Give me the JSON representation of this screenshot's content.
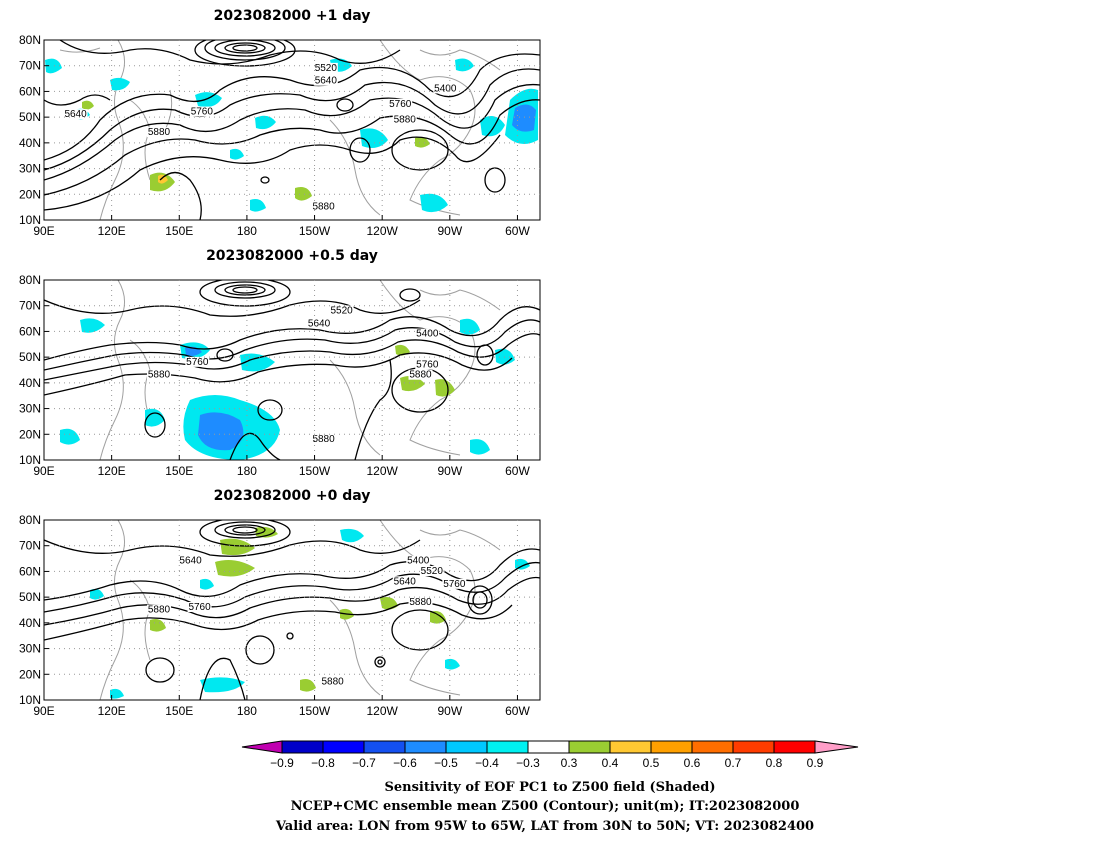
{
  "panels": [
    {
      "title": "2023082000  +1  day",
      "contour_labels": [
        {
          "text": "5520",
          "lon": 215,
          "lat": 68
        },
        {
          "text": "5640",
          "lon": 215,
          "lat": 63
        },
        {
          "text": "5400",
          "lon": 268,
          "lat": 60
        },
        {
          "text": "5760",
          "lon": 248,
          "lat": 54
        },
        {
          "text": "5880",
          "lon": 250,
          "lat": 48
        },
        {
          "text": "5640",
          "lon": 104,
          "lat": 50
        },
        {
          "text": "5760",
          "lon": 160,
          "lat": 51
        },
        {
          "text": "5880",
          "lon": 141,
          "lat": 43
        },
        {
          "text": "5880",
          "lon": 214,
          "lat": 14
        }
      ]
    },
    {
      "title": "2023082000  +0.5  day",
      "contour_labels": [
        {
          "text": "5520",
          "lon": 222,
          "lat": 67
        },
        {
          "text": "5640",
          "lon": 212,
          "lat": 62
        },
        {
          "text": "5400",
          "lon": 260,
          "lat": 58
        },
        {
          "text": "5760",
          "lon": 158,
          "lat": 47
        },
        {
          "text": "5760",
          "lon": 260,
          "lat": 46
        },
        {
          "text": "5880",
          "lon": 141,
          "lat": 42
        },
        {
          "text": "5880",
          "lon": 257,
          "lat": 42
        },
        {
          "text": "5880",
          "lon": 214,
          "lat": 17
        }
      ]
    },
    {
      "title": "2023082000  +0  day",
      "contour_labels": [
        {
          "text": "5640",
          "lon": 155,
          "lat": 63
        },
        {
          "text": "5400",
          "lon": 256,
          "lat": 63
        },
        {
          "text": "5520",
          "lon": 262,
          "lat": 59
        },
        {
          "text": "5640",
          "lon": 250,
          "lat": 55
        },
        {
          "text": "5760",
          "lon": 272,
          "lat": 54
        },
        {
          "text": "5760",
          "lon": 159,
          "lat": 45
        },
        {
          "text": "5880",
          "lon": 141,
          "lat": 44
        },
        {
          "text": "5880",
          "lon": 257,
          "lat": 47
        },
        {
          "text": "5880",
          "lon": 218,
          "lat": 16
        }
      ]
    }
  ],
  "map_extent": {
    "lon_min": 90,
    "lon_max": 310,
    "lat_min": 10,
    "lat_max": 80
  },
  "x_ticks": [
    "90E",
    "120E",
    "150E",
    "180",
    "150W",
    "120W",
    "90W",
    "60W"
  ],
  "y_ticks": [
    "80N",
    "70N",
    "60N",
    "50N",
    "40N",
    "30N",
    "20N",
    "10N"
  ],
  "colorbar": {
    "labels": [
      "−0.9",
      "−0.8",
      "−0.7",
      "−0.6",
      "−0.5",
      "−0.4",
      "−0.3",
      "0.3",
      "0.4",
      "0.5",
      "0.6",
      "0.7",
      "0.8",
      "0.9"
    ],
    "colors": [
      "#c000b0",
      "#0000c8",
      "#0000ff",
      "#1450f0",
      "#1e8cff",
      "#00c8ff",
      "#00f0f0",
      "#ffffff",
      "#9acd32",
      "#ffc832",
      "#ffa000",
      "#ff6e00",
      "#ff3c00",
      "#ff0000",
      "#ff9ec8"
    ]
  },
  "caption": [
    "Sensitivity of EOF PC1 to Z500 field (Shaded)",
    "NCEP+CMC ensemble mean Z500 (Contour); unit(m); IT:2023082000",
    "Valid area: LON from 95W to 65W, LAT from 30N to 50N; VT: 2023082400"
  ],
  "colors": {
    "contour": "#000000",
    "coast": "#a0a0a0",
    "cyan_shade": "#00e8f0",
    "blue_shade": "#1e8cff",
    "green_shade": "#9acd32"
  }
}
